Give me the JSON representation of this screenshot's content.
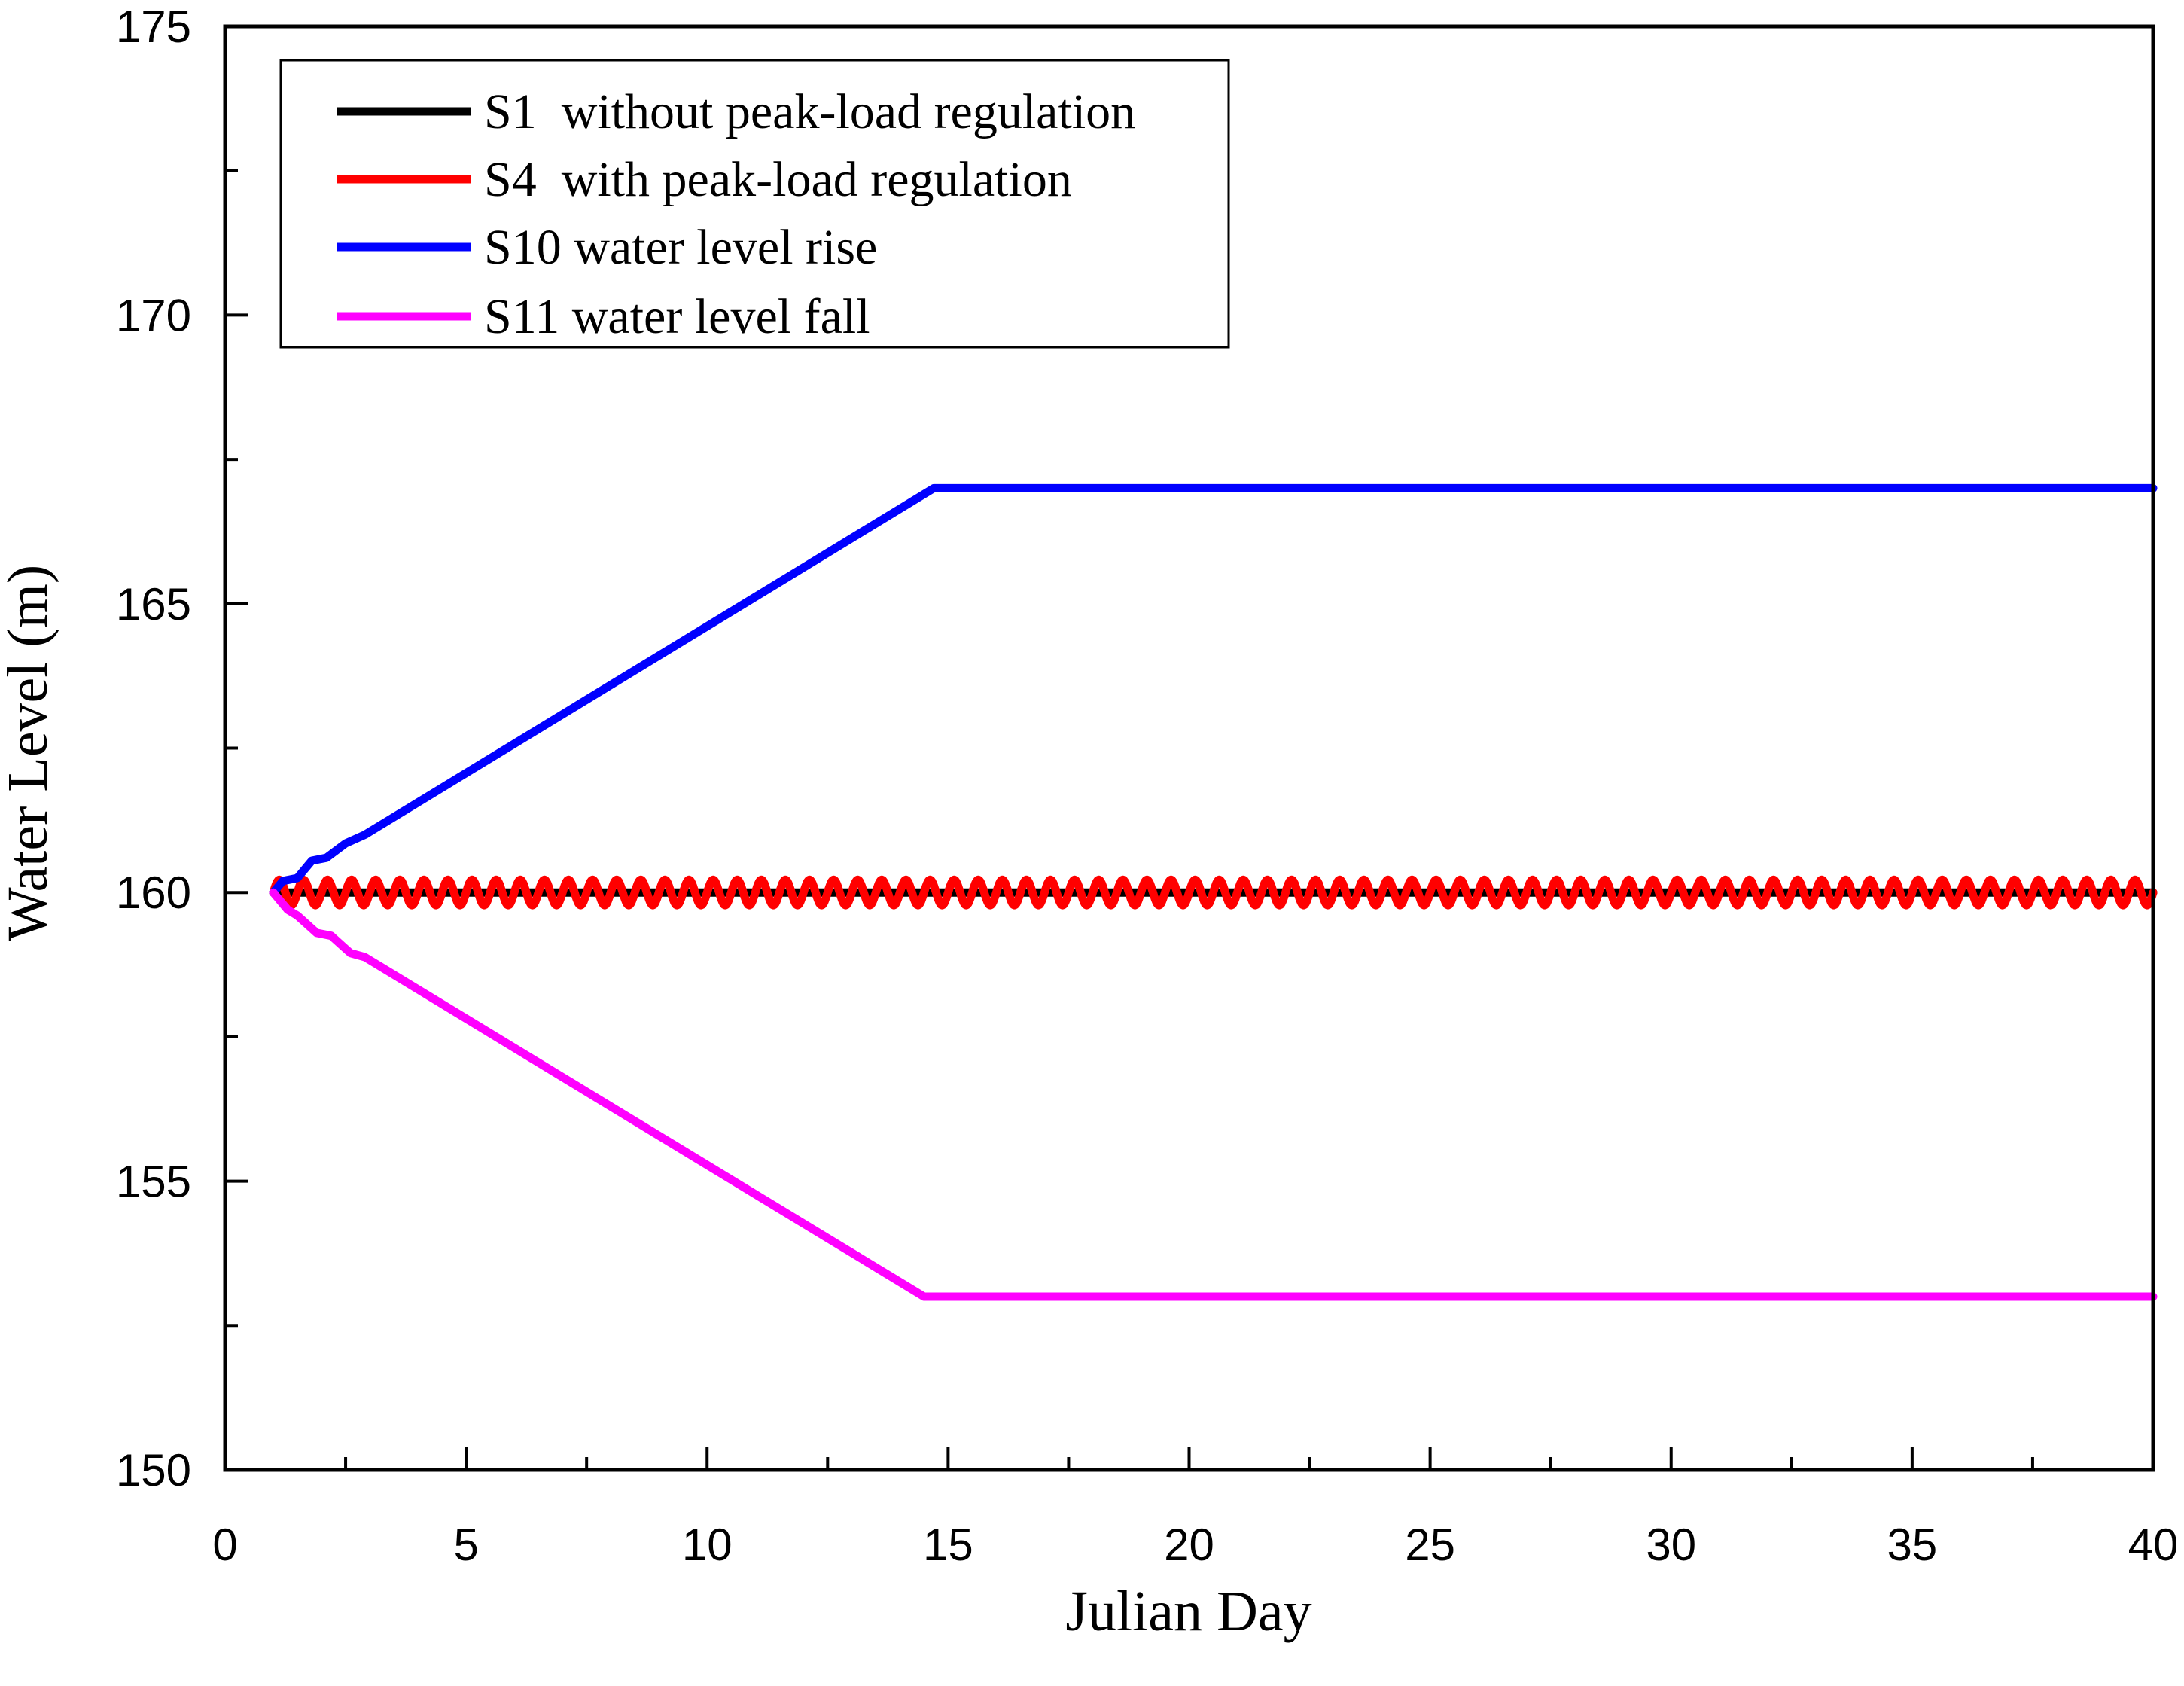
{
  "chart_data": {
    "type": "line",
    "title": "",
    "xlabel": "Julian Day",
    "ylabel": "Water Level (m)",
    "xlim": [
      0,
      40
    ],
    "ylim": [
      150,
      175
    ],
    "xticks": [
      0,
      5,
      10,
      15,
      20,
      25,
      30,
      35,
      40
    ],
    "yticks": [
      150,
      155,
      160,
      165,
      170,
      175
    ],
    "x_minor_step": 2.5,
    "y_minor_step": 2.5,
    "grid": false,
    "legend_position": "top-left",
    "series": [
      {
        "name": "S1  without peak-load regulation",
        "color": "#000000",
        "points": [
          [
            1,
            160
          ],
          [
            40,
            160
          ]
        ]
      },
      {
        "name": "S4  with peak-load regulation",
        "color": "#ff0000",
        "oscillation": {
          "start": 1,
          "end": 40,
          "mean": 160,
          "amplitude": 0.22,
          "period": 0.5
        }
      },
      {
        "name": "S10 water level rise",
        "color": "#0000ff",
        "points": [
          [
            1,
            160
          ],
          [
            1.2,
            160.2
          ],
          [
            1.5,
            160.25
          ],
          [
            1.8,
            160.55
          ],
          [
            2.1,
            160.6
          ],
          [
            2.5,
            160.85
          ],
          [
            2.9,
            161.0
          ],
          [
            14.7,
            167
          ],
          [
            40,
            167
          ]
        ]
      },
      {
        "name": "S11 water level fall",
        "color": "#ff00ff",
        "points": [
          [
            1,
            160
          ],
          [
            1.3,
            159.7
          ],
          [
            1.5,
            159.6
          ],
          [
            1.9,
            159.3
          ],
          [
            2.2,
            159.25
          ],
          [
            2.6,
            158.95
          ],
          [
            2.9,
            158.88
          ],
          [
            14.5,
            153
          ],
          [
            40,
            153
          ]
        ]
      }
    ]
  }
}
